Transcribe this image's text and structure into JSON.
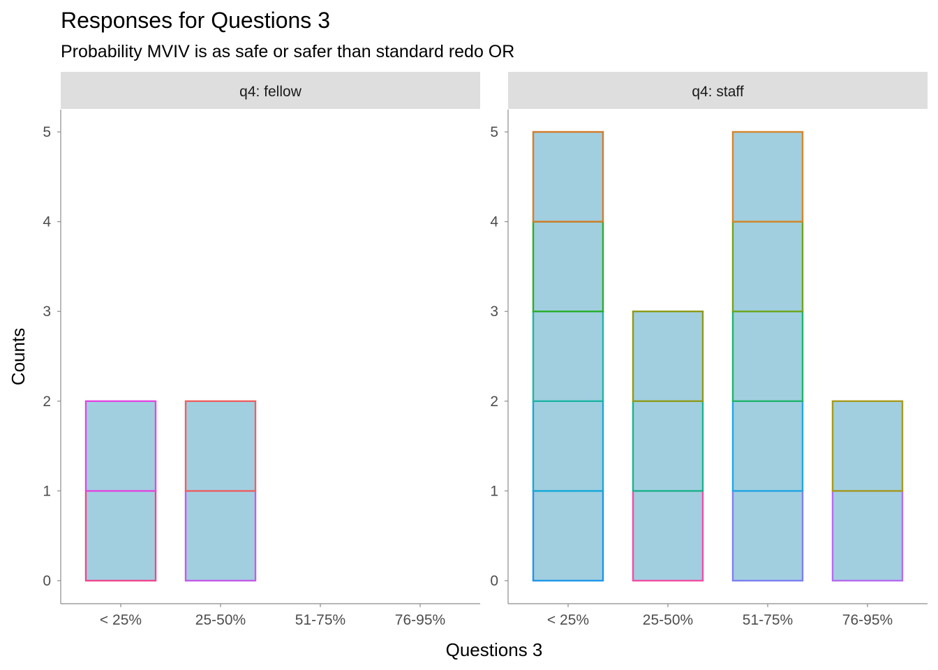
{
  "chart_data": {
    "type": "bar",
    "stacked": true,
    "title": "Responses for Questions 3",
    "subtitle": "Probability MVIV is as safe or safer than standard redo OR",
    "xlabel": "Questions 3",
    "ylabel": "Counts",
    "ylim": [
      0,
      5
    ],
    "yticks": [
      "0",
      "1",
      "2",
      "3",
      "4",
      "5"
    ],
    "categories": [
      "< 25%",
      "25-50%",
      "51-75%",
      "76-95%"
    ],
    "bar_fill": "#a1cfe0",
    "grid": false,
    "panels": [
      {
        "strip": "q4: fellow",
        "bars": [
          {
            "category": "< 25%",
            "total": 2,
            "segments": [
              {
                "value": 1,
                "color": "#f0478f"
              },
              {
                "value": 1,
                "color": "#e049e0"
              }
            ]
          },
          {
            "category": "25-50%",
            "total": 2,
            "segments": [
              {
                "value": 1,
                "color": "#c55be8"
              },
              {
                "value": 1,
                "color": "#ec6161"
              }
            ]
          },
          {
            "category": "51-75%",
            "total": 0,
            "segments": []
          },
          {
            "category": "76-95%",
            "total": 0,
            "segments": []
          }
        ]
      },
      {
        "strip": "q4: staff",
        "bars": [
          {
            "category": "< 25%",
            "total": 5,
            "segments": [
              {
                "value": 1,
                "color": "#1f96e8"
              },
              {
                "value": 1,
                "color": "#17a9d6"
              },
              {
                "value": 1,
                "color": "#1db5a5"
              },
              {
                "value": 1,
                "color": "#2bae2b"
              },
              {
                "value": 1,
                "color": "#d47c28"
              }
            ]
          },
          {
            "category": "25-50%",
            "total": 3,
            "segments": [
              {
                "value": 1,
                "color": "#f04da6"
              },
              {
                "value": 1,
                "color": "#1ab48c"
              },
              {
                "value": 1,
                "color": "#8f9a1a"
              }
            ]
          },
          {
            "category": "51-75%",
            "total": 5,
            "segments": [
              {
                "value": 1,
                "color": "#7f7ff2"
              },
              {
                "value": 1,
                "color": "#22a6e3"
              },
              {
                "value": 1,
                "color": "#21b36b"
              },
              {
                "value": 1,
                "color": "#6fa51f"
              },
              {
                "value": 1,
                "color": "#d4862a"
              }
            ]
          },
          {
            "category": "76-95%",
            "total": 2,
            "segments": [
              {
                "value": 1,
                "color": "#b66cf0"
              },
              {
                "value": 1,
                "color": "#a69a1d"
              }
            ]
          }
        ]
      }
    ]
  }
}
